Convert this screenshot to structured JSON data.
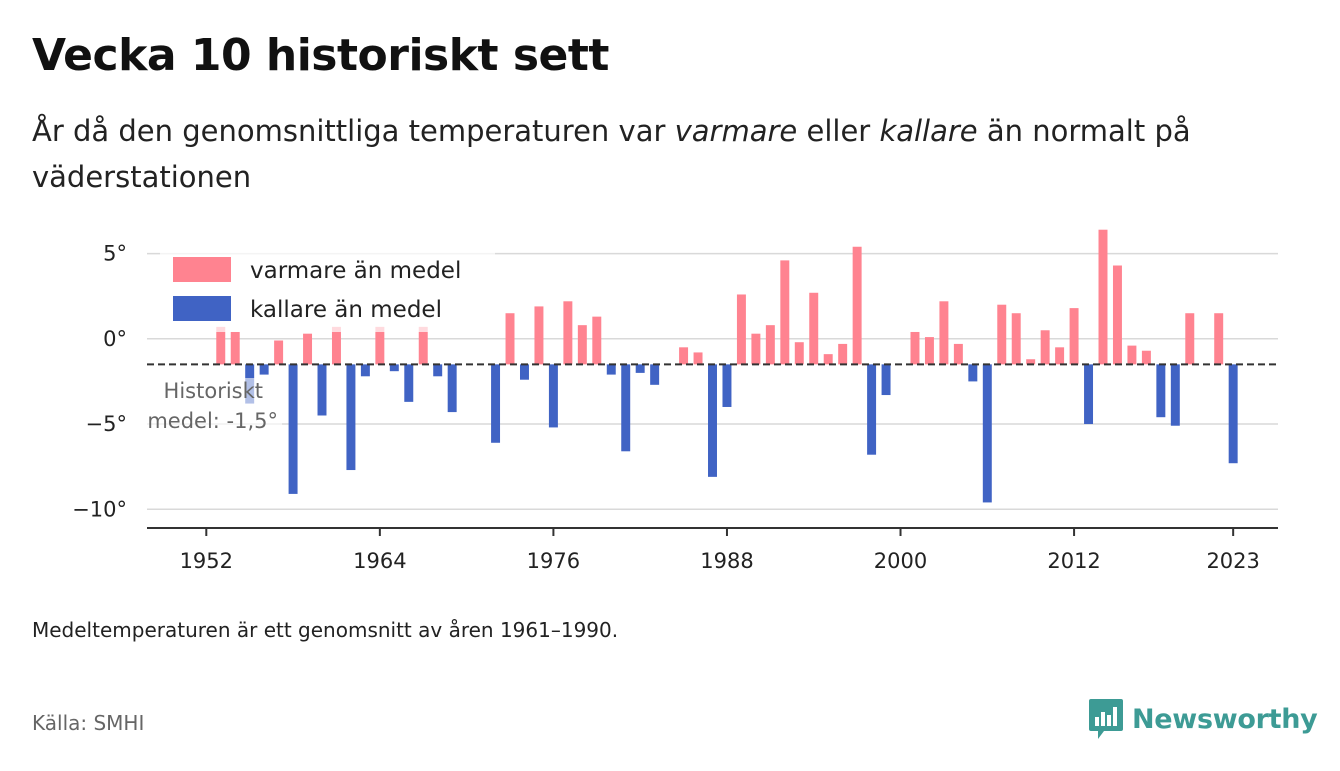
{
  "header": {
    "title": "Vecka 10 historiskt sett",
    "subtitle_pre": "År då den genomsnittliga temperaturen var ",
    "subtitle_em1": "varmare",
    "subtitle_mid": " eller ",
    "subtitle_em2": "kallare",
    "subtitle_post": " än normalt på väderstationen"
  },
  "footer": {
    "note": "Medeltemperaturen är ett genomsnitt av åren 1961–1990.",
    "source": "Källa: SMHI",
    "brand": "Newsworthy"
  },
  "colors": {
    "warm": "#ff8390",
    "cold": "#4063c4",
    "grid": "#d9d9d9",
    "axis": "#333333",
    "brand": "#3d9b95"
  },
  "chart_data": {
    "type": "bar",
    "baseline": -1.5,
    "ylim": [
      -11.1,
      6.5
    ],
    "yticks": [
      5,
      0,
      -5,
      -10
    ],
    "ytick_labels": [
      "5°",
      "0°",
      "−5°",
      "−10°"
    ],
    "xlim": [
      1947.9,
      2026.1
    ],
    "xticks": [
      1952,
      1964,
      1976,
      1988,
      2000,
      2012,
      2023
    ],
    "xtick_labels": [
      "1952",
      "1964",
      "1976",
      "1988",
      "2000",
      "2012",
      "2023"
    ],
    "legend": {
      "position": "top-left",
      "warm_label": "varmare än medel",
      "cold_label": "kallare än medel"
    },
    "annotation": {
      "line1": "Historiskt",
      "line2": "medel: -1,5°"
    },
    "years": [
      1953,
      1954,
      1955,
      1956,
      1957,
      1958,
      1959,
      1960,
      1961,
      1962,
      1963,
      1964,
      1965,
      1966,
      1967,
      1968,
      1969,
      1970,
      1971,
      1972,
      1973,
      1974,
      1975,
      1976,
      1977,
      1978,
      1979,
      1980,
      1981,
      1982,
      1983,
      1984,
      1985,
      1986,
      1987,
      1988,
      1989,
      1990,
      1991,
      1992,
      1993,
      1994,
      1995,
      1996,
      1997,
      1998,
      1999,
      2000,
      2001,
      2002,
      2003,
      2004,
      2005,
      2006,
      2007,
      2008,
      2009,
      2010,
      2011,
      2012,
      2013,
      2014,
      2015,
      2016,
      2017,
      2018,
      2019,
      2020,
      2021,
      2022,
      2023
    ],
    "values": [
      0.7,
      0.4,
      -3.8,
      -2.1,
      -0.1,
      -9.1,
      0.3,
      -4.5,
      0.7,
      -7.7,
      -2.2,
      0.7,
      -1.9,
      -3.7,
      0.7,
      -2.2,
      -4.3,
      -1.5,
      -1.5,
      -6.1,
      1.5,
      -2.4,
      1.9,
      -5.2,
      2.2,
      0.8,
      1.3,
      -2.1,
      -6.6,
      -2.0,
      -2.7,
      -1.5,
      -0.5,
      -0.8,
      -8.1,
      -4.0,
      2.6,
      0.3,
      0.8,
      4.6,
      -0.2,
      2.7,
      -0.9,
      -0.3,
      5.4,
      -6.8,
      -3.3,
      -1.5,
      0.4,
      0.1,
      2.2,
      -0.3,
      -2.5,
      -9.6,
      2.0,
      1.5,
      -1.2,
      0.5,
      -0.5,
      1.8,
      -5.0,
      6.4,
      4.3,
      -0.4,
      -0.7,
      -4.6,
      -5.1,
      1.5,
      -1.5,
      1.5,
      -7.3
    ]
  }
}
